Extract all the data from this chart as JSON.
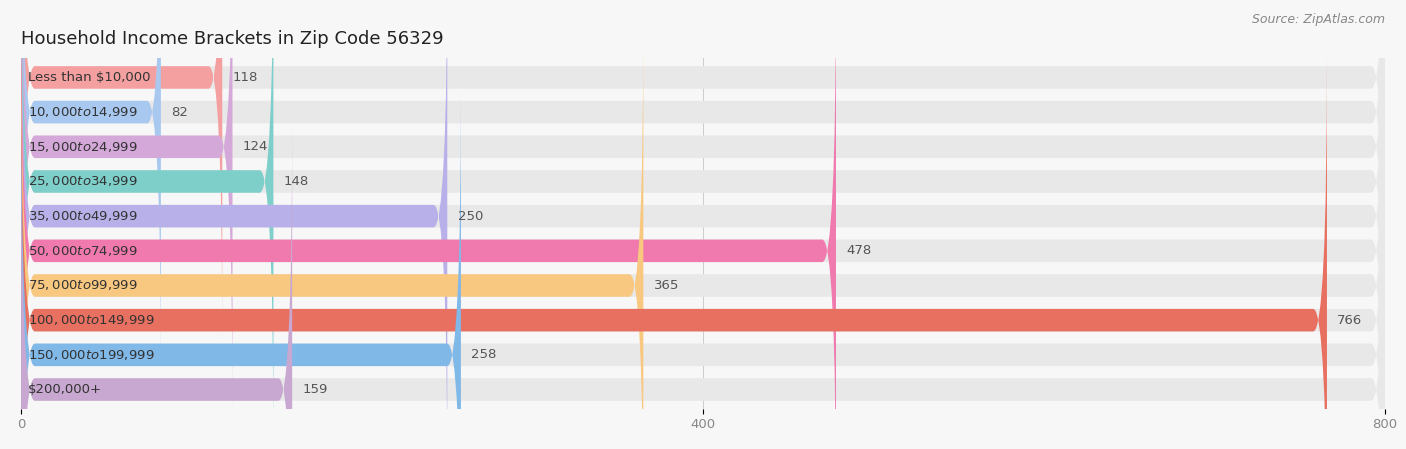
{
  "title": "Household Income Brackets in Zip Code 56329",
  "source": "Source: ZipAtlas.com",
  "categories": [
    "Less than $10,000",
    "$10,000 to $14,999",
    "$15,000 to $24,999",
    "$25,000 to $34,999",
    "$35,000 to $49,999",
    "$50,000 to $74,999",
    "$75,000 to $99,999",
    "$100,000 to $149,999",
    "$150,000 to $199,999",
    "$200,000+"
  ],
  "values": [
    118,
    82,
    124,
    148,
    250,
    478,
    365,
    766,
    258,
    159
  ],
  "bar_colors": [
    "#F4A0A0",
    "#A8C8F0",
    "#D4A8D8",
    "#7ECECA",
    "#B8B0E8",
    "#F07AAE",
    "#F8C880",
    "#E87060",
    "#80B8E8",
    "#C8A8D0"
  ],
  "background_color": "#f7f7f7",
  "bar_background_color": "#e8e8e8",
  "xlim": [
    0,
    800
  ],
  "xticks": [
    0,
    400,
    800
  ],
  "title_fontsize": 13,
  "label_fontsize": 9.5,
  "value_fontsize": 9.5,
  "source_fontsize": 9
}
